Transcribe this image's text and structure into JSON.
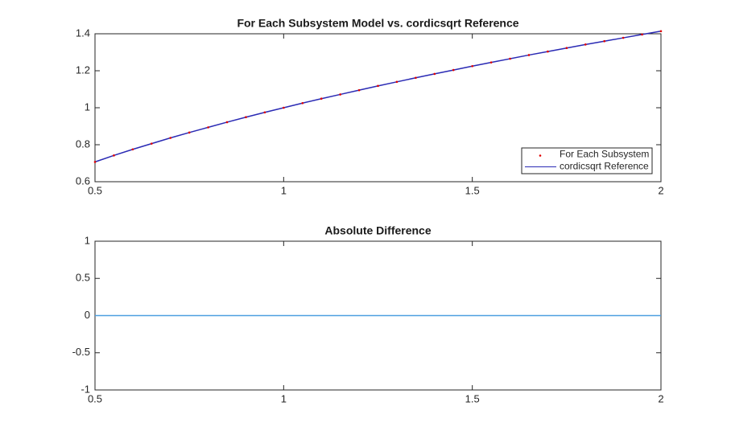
{
  "chart_data": [
    {
      "type": "line",
      "title": "For Each Subsystem Model vs. cordicsqrt Reference",
      "x": [
        0.5,
        0.55,
        0.6,
        0.65,
        0.7,
        0.75,
        0.8,
        0.85,
        0.9,
        0.95,
        1,
        1.05,
        1.1,
        1.15,
        1.2,
        1.25,
        1.3,
        1.35,
        1.4,
        1.45,
        1.5,
        1.55,
        1.6,
        1.65,
        1.7,
        1.75,
        1.8,
        1.85,
        1.9,
        1.95,
        2
      ],
      "series": [
        {
          "name": "For Each Subsystem",
          "color": "#e00000",
          "style": "dots",
          "values": [
            0.707,
            0.742,
            0.775,
            0.806,
            0.837,
            0.866,
            0.894,
            0.922,
            0.949,
            0.975,
            1,
            1.025,
            1.049,
            1.072,
            1.095,
            1.118,
            1.14,
            1.162,
            1.183,
            1.204,
            1.225,
            1.245,
            1.265,
            1.285,
            1.304,
            1.323,
            1.342,
            1.36,
            1.378,
            1.396,
            1.414
          ]
        },
        {
          "name": "cordicsqrt Reference",
          "color": "#2a2ab4",
          "style": "line",
          "values": [
            0.707,
            0.742,
            0.775,
            0.806,
            0.837,
            0.866,
            0.894,
            0.922,
            0.949,
            0.975,
            1,
            1.025,
            1.049,
            1.072,
            1.095,
            1.118,
            1.14,
            1.162,
            1.183,
            1.204,
            1.225,
            1.245,
            1.265,
            1.285,
            1.304,
            1.323,
            1.342,
            1.36,
            1.378,
            1.396,
            1.414
          ]
        }
      ],
      "xlim": [
        0.5,
        2
      ],
      "xticks": [
        0.5,
        1,
        1.5,
        2
      ],
      "ylim": [
        0.6,
        1.4
      ],
      "yticks": [
        0.6,
        0.8,
        1,
        1.2,
        1.4
      ],
      "legend": "lower right"
    },
    {
      "type": "line",
      "title": "Absolute Difference",
      "x": [
        0.5,
        2
      ],
      "series": [
        {
          "color": "#4d9fe0",
          "style": "line",
          "values": [
            0,
            0
          ]
        }
      ],
      "xlim": [
        0.5,
        2
      ],
      "xticks": [
        0.5,
        1,
        1.5,
        2
      ],
      "ylim": [
        -1,
        1
      ],
      "yticks": [
        -1,
        -0.5,
        0,
        0.5,
        1
      ]
    }
  ]
}
